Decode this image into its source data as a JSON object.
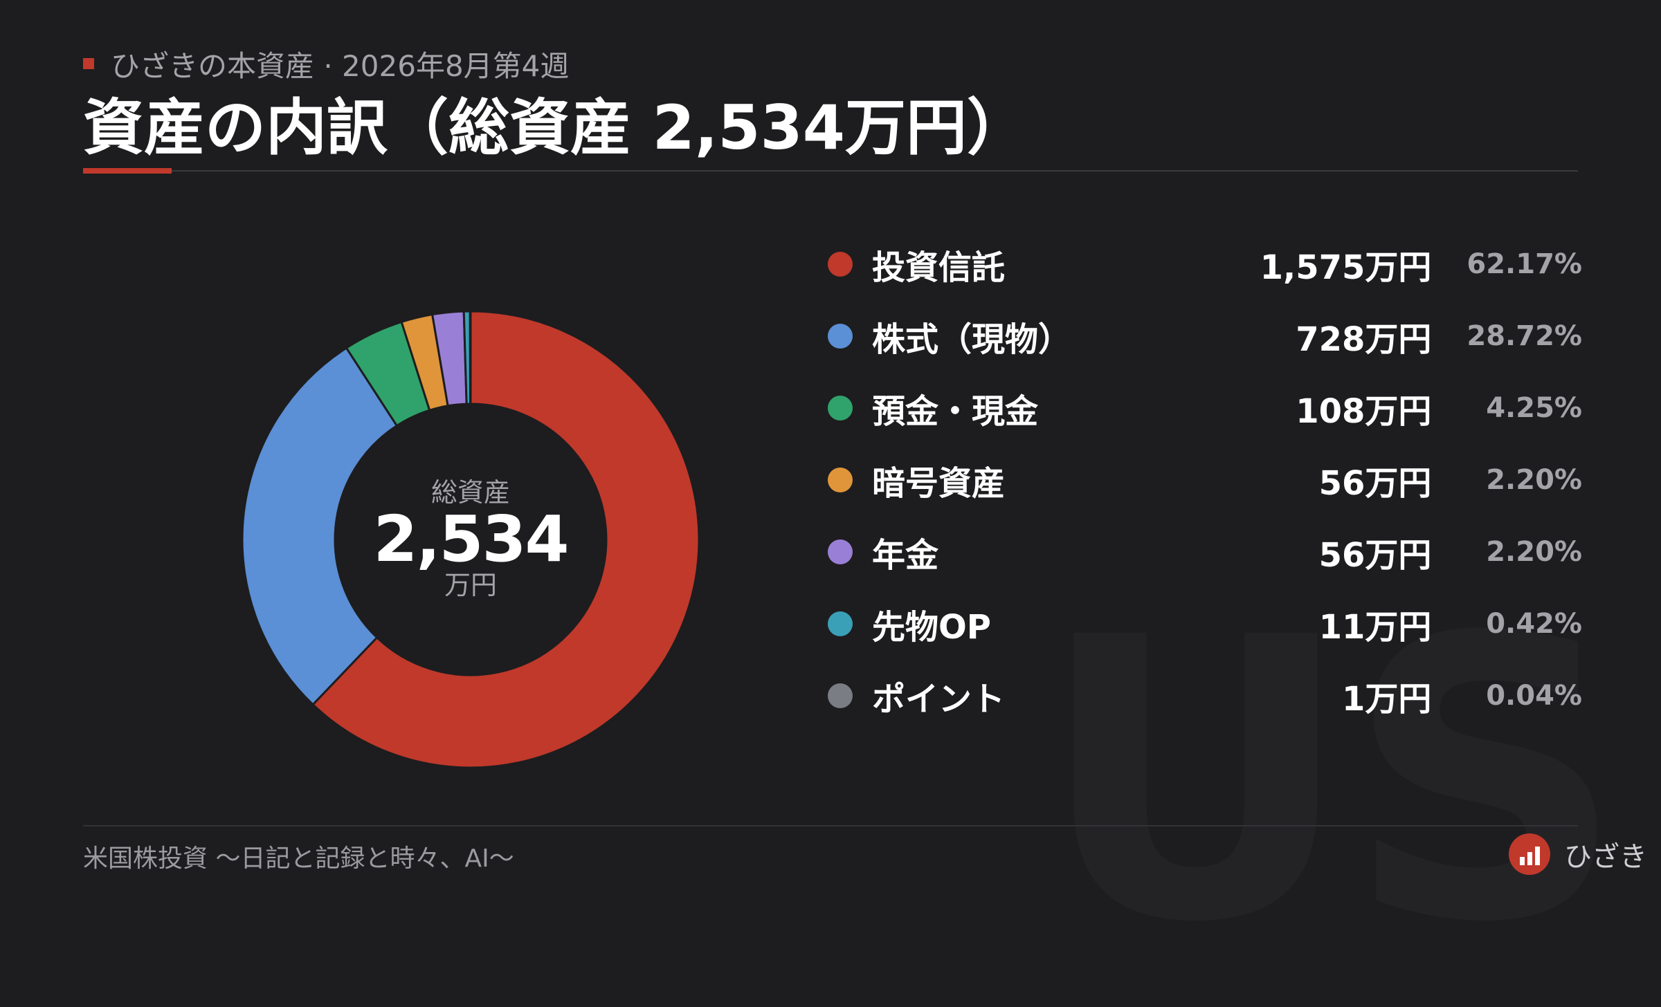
{
  "header": {
    "subtitle": "ひざきの本資産 · 2026年8月第4週",
    "title": "資産の内訳（総資産 2,534万円）"
  },
  "center": {
    "label": "総資産",
    "value": "2,534",
    "unit": "万円"
  },
  "footer": {
    "text": "米国株投資 〜日記と記録と時々、AI〜",
    "brand": "ひざき"
  },
  "watermark": "US",
  "colors": {
    "accent": "#c0392b",
    "background": "#1d1d1f"
  },
  "chart_data": {
    "type": "pie",
    "style": "donut",
    "categories": [
      "投資信託",
      "株式（現物）",
      "預金・現金",
      "暗号資産",
      "年金",
      "先物OP",
      "ポイント"
    ],
    "values": [
      1575,
      728,
      108,
      56,
      56,
      11,
      1
    ],
    "value_labels": [
      "1,575万円",
      "728万円",
      "108万円",
      "56万円",
      "56万円",
      "11万円",
      "1万円"
    ],
    "percent_labels": [
      "62.17%",
      "28.72%",
      "4.25%",
      "2.20%",
      "2.20%",
      "0.42%",
      "0.04%"
    ],
    "colors": [
      "#c0392b",
      "#5b8fd6",
      "#2fa36b",
      "#e0953a",
      "#9a7fd6",
      "#3aa0b8",
      "#7a7d84"
    ],
    "legend": "right"
  }
}
